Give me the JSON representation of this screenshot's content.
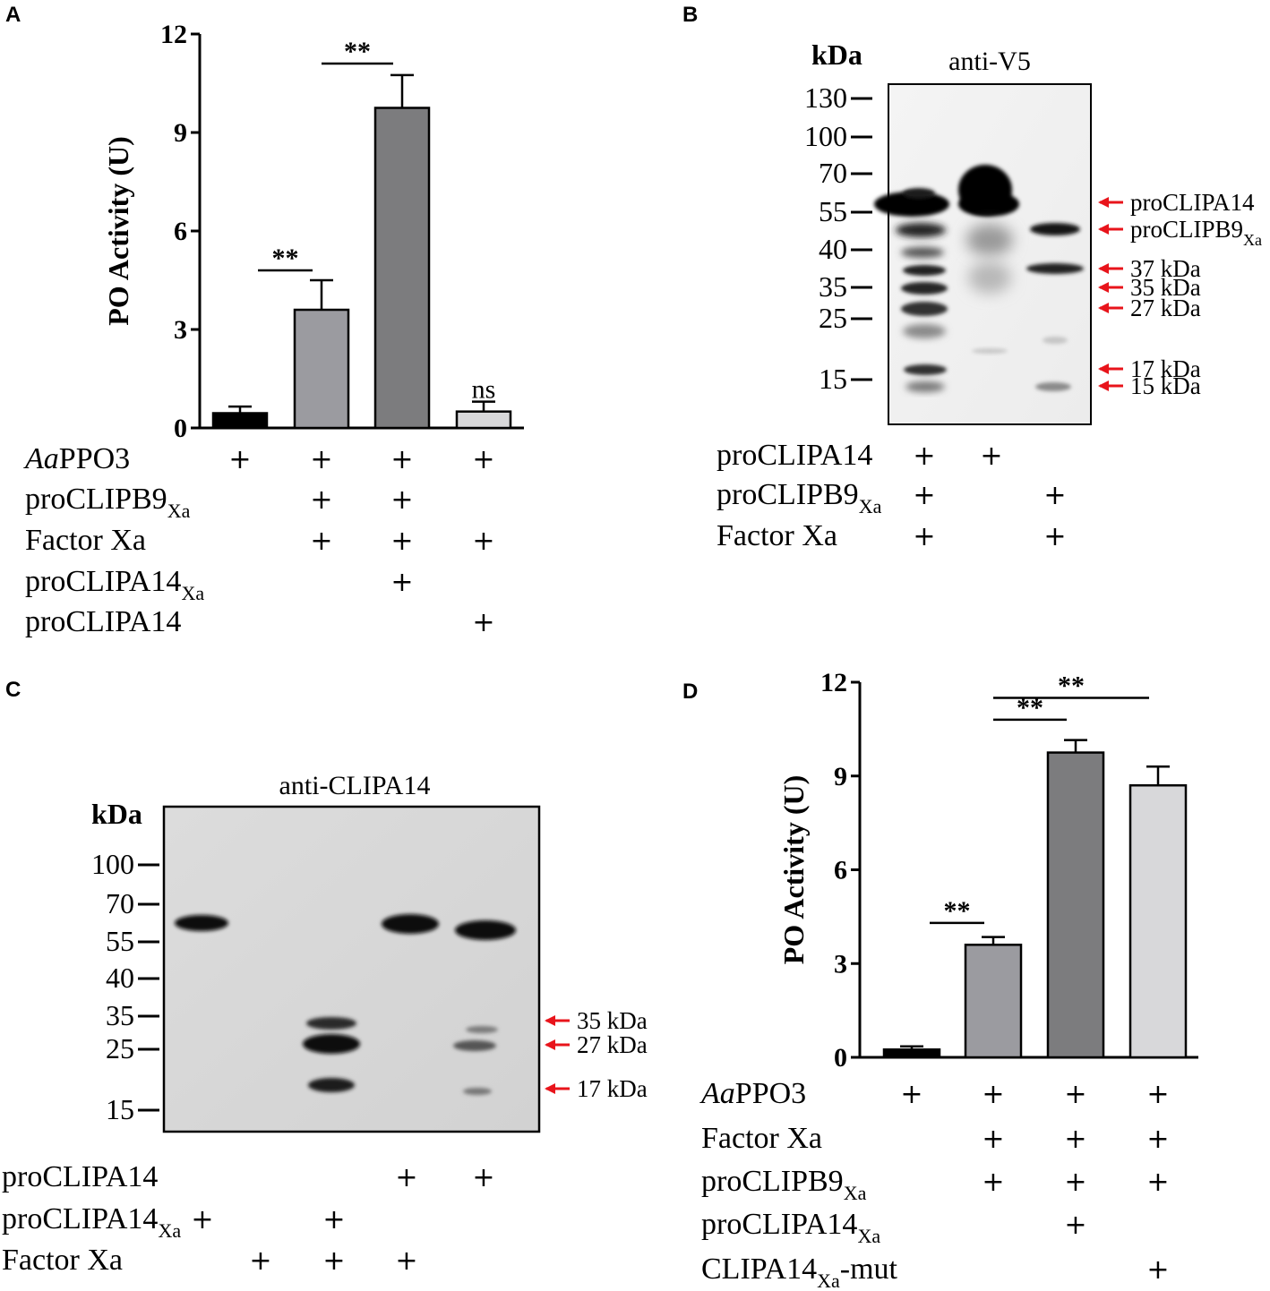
{
  "panels": {
    "A": {
      "letter": "A"
    },
    "B": {
      "letter": "B"
    },
    "C": {
      "letter": "C"
    },
    "D": {
      "letter": "D"
    }
  },
  "chart_data": [
    {
      "panel": "A",
      "type": "bar",
      "ylabel": "PO Activity (U)",
      "ylim": [
        0,
        12
      ],
      "yticks": [
        "0",
        "3",
        "6",
        "9",
        "12"
      ],
      "values": [
        0.45,
        3.6,
        9.75,
        0.5
      ],
      "errors": [
        0.2,
        0.9,
        1.0,
        0.3
      ],
      "colors": [
        "#000000",
        "#9b9ba0",
        "#7c7c7e",
        "#d8d8da"
      ],
      "significance": [
        {
          "label": "**",
          "from": 0,
          "to": 1,
          "y": 4.8
        },
        {
          "label": "**",
          "from": 1,
          "to": 2,
          "y": 11.1
        },
        {
          "label": "ns",
          "bar": 3,
          "y": 0.8
        }
      ],
      "rows": [
        {
          "label": "PPO3",
          "prefix": "Aa",
          "sub": "",
          "marks": [
            true,
            true,
            true,
            true
          ]
        },
        {
          "label": "proCLIPB9",
          "prefix": "",
          "sub": "Xa",
          "marks": [
            false,
            true,
            true,
            false
          ]
        },
        {
          "label": "Factor Xa",
          "prefix": "",
          "sub": "",
          "marks": [
            false,
            true,
            true,
            true
          ]
        },
        {
          "label": "proCLIPA14",
          "prefix": "",
          "sub": "Xa",
          "marks": [
            false,
            false,
            true,
            false
          ]
        },
        {
          "label": "proCLIPA14",
          "prefix": "",
          "sub": "",
          "marks": [
            false,
            false,
            false,
            true
          ]
        }
      ]
    },
    {
      "panel": "D",
      "type": "bar",
      "ylabel": "PO Activity (U)",
      "ylim": [
        0,
        12
      ],
      "yticks": [
        "0",
        "3",
        "6",
        "9",
        "12"
      ],
      "values": [
        0.25,
        3.6,
        9.75,
        8.7
      ],
      "errors": [
        0.1,
        0.25,
        0.4,
        0.6
      ],
      "colors": [
        "#000000",
        "#9b9ba0",
        "#7c7c7e",
        "#d8d8da"
      ],
      "significance": [
        {
          "label": "**",
          "from": 0,
          "to": 1,
          "y": 4.3
        },
        {
          "label": "**",
          "from": 1,
          "to": 2,
          "y": 10.8
        },
        {
          "label": "**",
          "from": 1,
          "to": 3,
          "y": 11.5
        }
      ],
      "rows": [
        {
          "label": "PPO3",
          "prefix": "Aa",
          "sub": "",
          "marks": [
            true,
            true,
            true,
            true
          ]
        },
        {
          "label": "Factor Xa",
          "prefix": "",
          "sub": "",
          "marks": [
            false,
            true,
            true,
            true
          ]
        },
        {
          "label": "proCLIPB9",
          "prefix": "",
          "sub": "Xa",
          "marks": [
            false,
            true,
            true,
            true
          ]
        },
        {
          "label": "proCLIPA14",
          "prefix": "",
          "sub": "Xa",
          "marks": [
            false,
            false,
            true,
            false
          ]
        },
        {
          "label": "CLIPA14",
          "prefix": "",
          "sub": "Xa",
          "suffix": "-mut",
          "marks": [
            false,
            false,
            false,
            true
          ]
        }
      ]
    }
  ],
  "blots": {
    "B": {
      "title": "anti-V5",
      "kda_label": "kDa",
      "markers": [
        "130",
        "100",
        "70",
        "55",
        "40",
        "35",
        "25",
        "15"
      ],
      "annotations": [
        {
          "text": "proCLIPA14",
          "sub": ""
        },
        {
          "text": "proCLIPB9",
          "sub": "Xa"
        },
        {
          "text": "37 kDa",
          "sub": ""
        },
        {
          "text": "35 kDa",
          "sub": ""
        },
        {
          "text": "27 kDa",
          "sub": ""
        },
        {
          "text": "17 kDa",
          "sub": ""
        },
        {
          "text": "15 kDa",
          "sub": ""
        }
      ],
      "rows": [
        {
          "label": "proCLIPA14",
          "sub": "",
          "marks": [
            true,
            true,
            false
          ]
        },
        {
          "label": "proCLIPB9",
          "sub": "Xa",
          "marks": [
            true,
            false,
            true
          ]
        },
        {
          "label": "Factor Xa",
          "sub": "",
          "marks": [
            true,
            false,
            true
          ]
        }
      ]
    },
    "C": {
      "title": "anti-CLIPA14",
      "kda_label": "kDa",
      "markers": [
        "100",
        "70",
        "55",
        "40",
        "35",
        "25",
        "15"
      ],
      "annotations": [
        {
          "text": "35 kDa",
          "sub": ""
        },
        {
          "text": "27 kDa",
          "sub": ""
        },
        {
          "text": "17 kDa",
          "sub": ""
        }
      ],
      "rows": [
        {
          "label": "proCLIPA14",
          "sub": "",
          "marks": [
            false,
            false,
            false,
            true,
            true
          ]
        },
        {
          "label": "proCLIPA14",
          "sub": "Xa",
          "marks": [
            true,
            false,
            true,
            false,
            false
          ]
        },
        {
          "label": "Factor Xa",
          "sub": "",
          "marks": [
            false,
            true,
            true,
            true,
            false
          ]
        }
      ]
    }
  },
  "plus_sign": "+",
  "colors": {
    "arrow": "#e8141b",
    "axis": "#000000"
  }
}
